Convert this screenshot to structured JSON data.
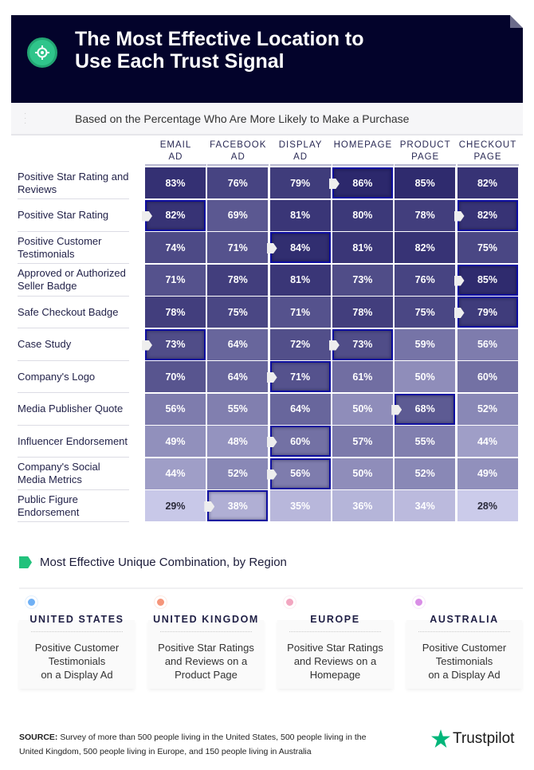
{
  "header": {
    "title_line1": "The Most Effective Location to",
    "title_line2": "Use Each Trust Signal",
    "subtitle": "Based on the Percentage Who Are More Likely to Make a Purchase",
    "icon": "target-icon",
    "accent": "#2fc58b"
  },
  "chart_data": {
    "type": "heatmap",
    "columns": [
      [
        "EMAIL",
        "AD"
      ],
      [
        "FACEBOOK",
        "AD"
      ],
      [
        "DISPLAY",
        "AD"
      ],
      [
        "HOMEPAGE",
        ""
      ],
      [
        "PRODUCT",
        "PAGE"
      ],
      [
        "CHECKOUT",
        "PAGE"
      ]
    ],
    "rows": [
      {
        "label": "Positive Star Rating and Reviews",
        "values": [
          83,
          76,
          79,
          86,
          85,
          82
        ]
      },
      {
        "label": "Positive Star Rating",
        "values": [
          82,
          69,
          81,
          80,
          78,
          82
        ]
      },
      {
        "label": "Positive Customer Testimonials",
        "values": [
          74,
          71,
          84,
          81,
          82,
          75
        ]
      },
      {
        "label": "Approved or Authorized Seller Badge",
        "values": [
          71,
          78,
          81,
          73,
          76,
          85
        ]
      },
      {
        "label": "Safe Checkout Badge",
        "values": [
          78,
          75,
          71,
          78,
          75,
          79
        ]
      },
      {
        "label": "Case Study",
        "values": [
          73,
          64,
          72,
          73,
          59,
          56
        ]
      },
      {
        "label": "Company's Logo",
        "values": [
          70,
          64,
          71,
          61,
          50,
          60
        ]
      },
      {
        "label": "Media Publisher Quote",
        "values": [
          56,
          55,
          64,
          50,
          68,
          52
        ]
      },
      {
        "label": "Influencer Endorsement",
        "values": [
          49,
          48,
          60,
          57,
          55,
          44
        ]
      },
      {
        "label": "Company's Social Media Metrics",
        "values": [
          44,
          52,
          56,
          50,
          52,
          49
        ]
      },
      {
        "label": "Public Figure Endorsement",
        "values": [
          29,
          38,
          35,
          36,
          34,
          28
        ]
      }
    ],
    "unit": "%",
    "highlight": "row maximum",
    "color_low": "#cbcbea",
    "color_high": "#2c286c"
  },
  "regions": {
    "title": "Most Effective Unique Combination, by Region",
    "cards": [
      {
        "region": "UNITED STATES",
        "text": "Positive Customer\nTestimonials\non a Display Ad",
        "color": "#6fb0f5"
      },
      {
        "region": "UNITED KINGDOM",
        "text": "Positive Star Ratings\nand Reviews on a\nProduct Page",
        "color": "#f5957a"
      },
      {
        "region": "EUROPE",
        "text": "Positive Star Ratings\nand Reviews on a\nHomepage",
        "color": "#f2a6c0"
      },
      {
        "region": "AUSTRALIA",
        "text": "Positive Customer\nTestimonials\non a Display Ad",
        "color": "#d98ee6"
      }
    ]
  },
  "footer": {
    "source_label": "SOURCE:",
    "source_text": " Survey of more than 500 people living in the United States, 500 people living in the United Kingdom, 500 people living in Europe, and 150 people living in Australia",
    "brand": "Trustpilot",
    "brand_color": "#00b67a"
  }
}
